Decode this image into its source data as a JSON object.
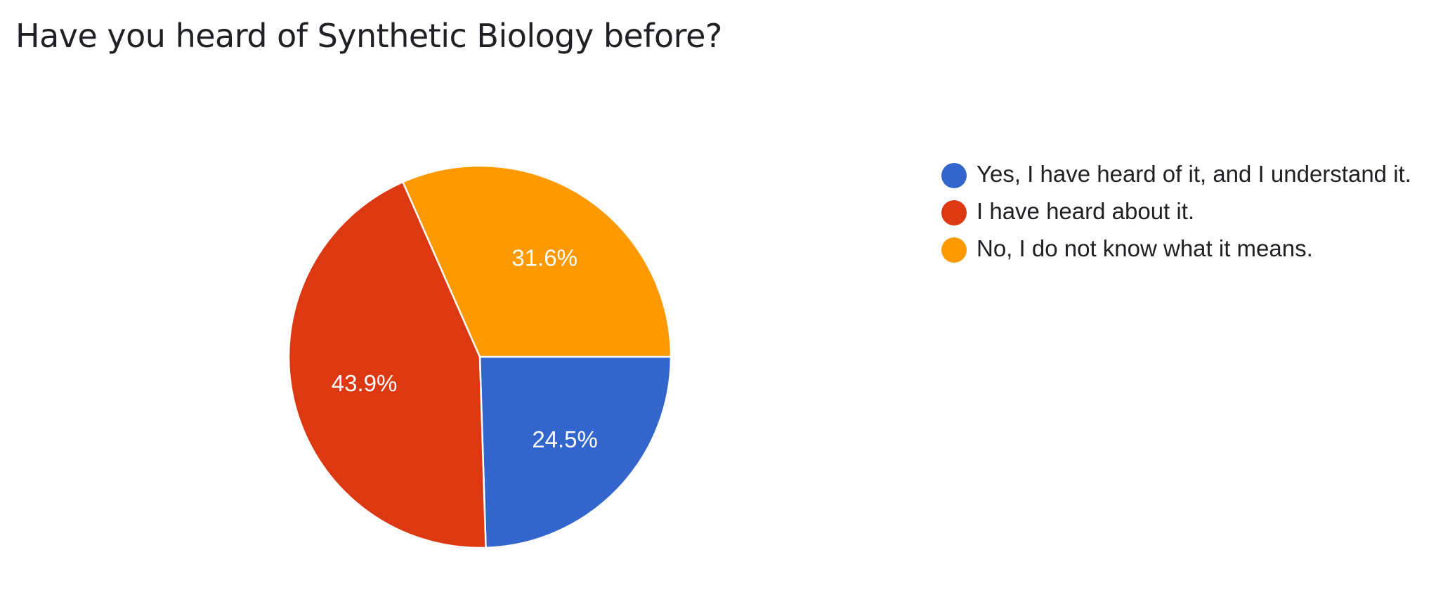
{
  "chart_data": {
    "type": "pie",
    "title": "Have you heard of Synthetic Biology before?",
    "slices": [
      {
        "label": "Yes, I have heard of it, and I understand it.",
        "value": 24.5,
        "value_label": "24.5%",
        "color": "#3366cc"
      },
      {
        "label": "I have heard about it.",
        "value": 43.9,
        "value_label": "43.9%",
        "color": "#dc3912"
      },
      {
        "label": "No, I do not know what it means.",
        "value": 31.6,
        "value_label": "31.6%",
        "color": "#ff9900"
      }
    ],
    "start": "3 o'clock",
    "direction": "clockwise",
    "legend": "right"
  }
}
